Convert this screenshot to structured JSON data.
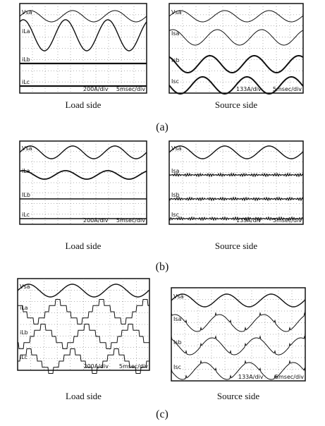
{
  "panels": [
    {
      "label": "(a)",
      "screens": [
        {
          "traces": [
            "Vsa",
            "iLa",
            "iLb",
            "iLc"
          ],
          "scale": "200A/div",
          "timebase": "5msec/div",
          "caption": "Load side"
        },
        {
          "traces": [
            "Vsa",
            "Isa",
            "Isb",
            "Isc"
          ],
          "scale": "133A/div",
          "timebase": "5msec/div",
          "caption": "Source side"
        }
      ]
    },
    {
      "label": "(b)",
      "screens": [
        {
          "traces": [
            "Vsa",
            "iLa",
            "ILb",
            "iLc"
          ],
          "scale": "200A/div",
          "timebase": "5msec/div",
          "caption": "Load side"
        },
        {
          "traces": [
            "Vsa",
            "Isa",
            "Isb",
            "Isc"
          ],
          "scale": "133A/div",
          "timebase": "5msec/div",
          "caption": "Source side"
        }
      ]
    },
    {
      "label": "(c)",
      "screens": [
        {
          "traces": [
            "Vsa",
            "iLa",
            "iLb",
            "iLc"
          ],
          "scale": "200A/div",
          "timebase": "5msec/div",
          "caption": "Load side"
        },
        {
          "traces": [
            "Vsa",
            "Isa",
            "Isb",
            "Isc"
          ],
          "scale": "133A/div",
          "timebase": "5msec/div",
          "caption": "Source side"
        }
      ]
    }
  ]
}
